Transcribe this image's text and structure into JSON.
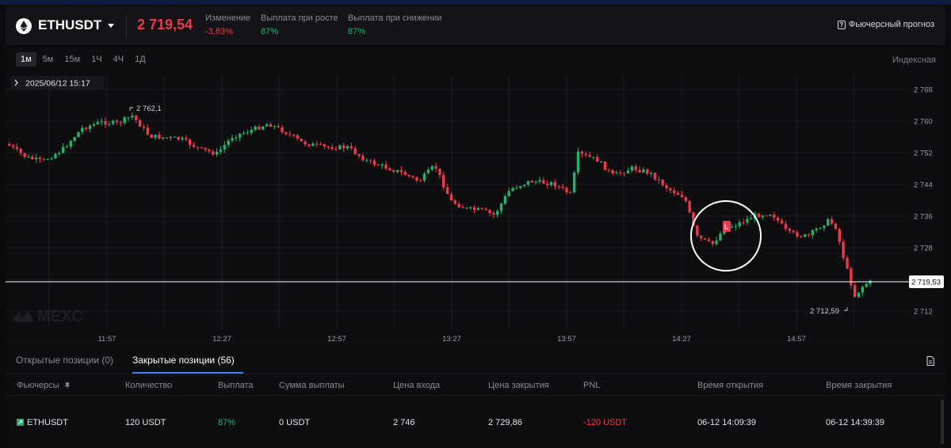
{
  "header": {
    "symbol": "ETHUSDT",
    "price": "2 719,54",
    "stats": [
      {
        "label": "Изменение",
        "value": "-3,63%",
        "color": "#f0384c"
      },
      {
        "label": "Выплата при росте",
        "value": "87%",
        "color": "#23b26d"
      },
      {
        "label": "Выплата при снижении",
        "value": "87%",
        "color": "#23b26d"
      }
    ],
    "forecast_label": "Фьючерсный прогноз"
  },
  "chart": {
    "timeframes": [
      "1м",
      "5м",
      "15м",
      "1Ч",
      "4Ч",
      "1Д"
    ],
    "active_timeframe": "1м",
    "price_type": "Индексная",
    "cursor_time": "2025/06/12 15:17",
    "watermark": "MEXC",
    "y_ticks": [
      "2 768",
      "2 760",
      "2 752",
      "2 744",
      "2 736",
      "2 728",
      "2 712"
    ],
    "x_ticks": [
      "11:57",
      "12:27",
      "12:57",
      "13:27",
      "13:57",
      "14:27",
      "14:57"
    ],
    "max_label": "2 762,1",
    "min_label": "2 712,59",
    "current_price_label": "2 719,53",
    "colors": {
      "up": "#23b26d",
      "down": "#f0384c"
    }
  },
  "tabs": {
    "open": "Открытые позиции (0)",
    "closed": "Закрытые позиции (56)"
  },
  "table": {
    "columns": [
      "Фьючерсы",
      "Количество",
      "Выплата",
      "Сумма выплаты",
      "Цена входа",
      "Цена закрытия",
      "PNL",
      "Время открытия",
      "Время закрытия"
    ],
    "rows": [
      {
        "symbol": "ETHUSDT",
        "quantity": "120 USDT",
        "payout": "87%",
        "payout_amount": "0 USDT",
        "entry_price": "2 746",
        "close_price": "2 729,86",
        "pnl": "-120 USDT",
        "open_time": "06-12 14:09:39",
        "close_time": "06-12 14:39:39"
      }
    ]
  }
}
